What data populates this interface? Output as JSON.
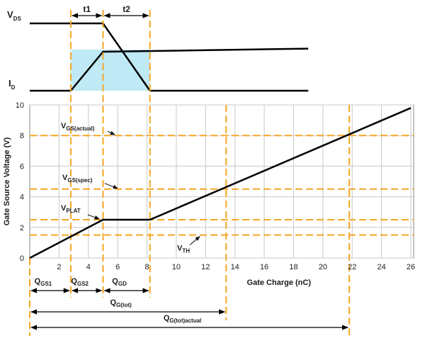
{
  "chart_data": [
    {
      "type": "line",
      "panel": "top-waveform",
      "title": "",
      "labels": {
        "vds": {
          "main": "V",
          "sub": "DS"
        },
        "id": {
          "main": "I",
          "sub": "D"
        },
        "t1": "t1",
        "t2": "t2"
      },
      "x_markers": [
        2.8,
        5.0,
        8.2
      ],
      "series": [
        {
          "key": "vds",
          "x": [
            0,
            5.0,
            8.2,
            19
          ],
          "y": [
            1,
            1,
            0,
            0
          ]
        },
        {
          "key": "id",
          "x": [
            0,
            2.8,
            5.0,
            19
          ],
          "y": [
            0,
            0,
            1,
            1.08
          ]
        }
      ],
      "shaded_region": {
        "x": [
          2.8,
          8.2
        ],
        "color": "#bfe9f5"
      }
    },
    {
      "type": "line",
      "panel": "gate-charge",
      "title": "",
      "xlabel": "Gate Charge (nC)",
      "ylabel": "Gate Source Voltage (V)",
      "xlim": [
        0,
        26
      ],
      "ylim": [
        0,
        10
      ],
      "x_ticks": [
        2,
        4,
        6,
        8,
        10,
        12,
        14,
        16,
        18,
        20,
        22,
        24,
        26
      ],
      "y_ticks": [
        0,
        2,
        4,
        6,
        8,
        10
      ],
      "grid": true,
      "series": [
        {
          "key": "vgs",
          "x": [
            0,
            5.0,
            8.2,
            26
          ],
          "y": [
            0,
            2.5,
            2.5,
            9.8
          ],
          "color": "#000000"
        }
      ],
      "h_lines": [
        {
          "key": "vgs_actual",
          "y": 8.0,
          "main": "V",
          "sub": "GS(actual)"
        },
        {
          "key": "vgs_spec",
          "y": 4.5,
          "main": "V",
          "sub": "GS(spec)"
        },
        {
          "key": "vplat",
          "y": 2.5,
          "main": "V",
          "sub": "PLAT"
        },
        {
          "key": "vth",
          "y": 1.5,
          "main": "V",
          "sub": "TH"
        }
      ],
      "v_lines": [
        2.8,
        5.0,
        8.2,
        13.4,
        21.8
      ],
      "intervals": [
        {
          "key": "qgs1",
          "x": [
            0,
            2.8
          ],
          "main": "Q",
          "sub": "GS1"
        },
        {
          "key": "qgs2",
          "x": [
            2.8,
            5.0
          ],
          "main": "Q",
          "sub": "GS2"
        },
        {
          "key": "qgd",
          "x": [
            5.0,
            8.2
          ],
          "main": "Q",
          "sub": "GD"
        },
        {
          "key": "qgtot",
          "x": [
            0,
            13.4
          ],
          "main": "Q",
          "sub": "G(tot)"
        },
        {
          "key": "qgtotactual",
          "x": [
            0,
            21.8
          ],
          "main": "Q",
          "sub": "G(tot)actual"
        }
      ],
      "colors": {
        "dashed": "#f5a623",
        "grid": "#c8c8c8",
        "curve": "#000000"
      }
    }
  ]
}
